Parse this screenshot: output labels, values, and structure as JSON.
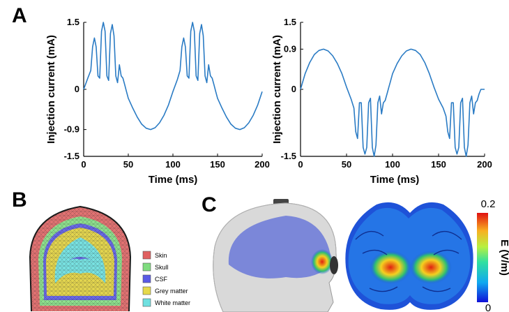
{
  "panels": {
    "a": "A",
    "b": "B",
    "c": "C"
  },
  "chart_data": [
    {
      "type": "line",
      "xlabel": "Time (ms)",
      "ylabel": "Injection current (mA)",
      "xlim": [
        0,
        200
      ],
      "ylim": [
        -1.5,
        1.5
      ],
      "xticks": [
        "0",
        "50",
        "100",
        "150",
        "200"
      ],
      "yticks": [
        "1.5",
        "0",
        "-0.9",
        "-1.5"
      ],
      "ytick_values": [
        1.5,
        0,
        -0.9,
        -1.5
      ],
      "series": [
        {
          "color": "#2a7bc4",
          "x": [
            0,
            5,
            8,
            10,
            12,
            14,
            16,
            18,
            20,
            22,
            24,
            26,
            28,
            30,
            32,
            34,
            36,
            38,
            40,
            42,
            44,
            46,
            48,
            50,
            55,
            60,
            65,
            70,
            75,
            80,
            85,
            90,
            95,
            100,
            105,
            108,
            110,
            112,
            114,
            116,
            118,
            120,
            122,
            124,
            126,
            128,
            130,
            132,
            134,
            136,
            138,
            140,
            142,
            144,
            146,
            148,
            150,
            155,
            160,
            165,
            170,
            175,
            180,
            185,
            190,
            195,
            200
          ],
          "y": [
            0.0,
            0.27,
            0.42,
            0.95,
            1.15,
            0.95,
            0.3,
            0.25,
            1.3,
            1.5,
            1.3,
            0.3,
            0.2,
            1.25,
            1.45,
            1.2,
            0.3,
            0.15,
            0.55,
            0.3,
            0.25,
            0.1,
            -0.05,
            -0.2,
            -0.42,
            -0.62,
            -0.78,
            -0.87,
            -0.9,
            -0.86,
            -0.75,
            -0.58,
            -0.35,
            -0.05,
            0.22,
            0.42,
            0.95,
            1.15,
            0.95,
            0.3,
            0.25,
            1.3,
            1.5,
            1.3,
            0.3,
            0.2,
            1.25,
            1.45,
            1.2,
            0.3,
            0.15,
            0.55,
            0.3,
            0.25,
            0.1,
            -0.05,
            -0.2,
            -0.42,
            -0.62,
            -0.78,
            -0.87,
            -0.9,
            -0.86,
            -0.75,
            -0.58,
            -0.35,
            -0.05
          ]
        }
      ]
    },
    {
      "type": "line",
      "xlabel": "Time (ms)",
      "ylabel": "Injection current (mA)",
      "xlim": [
        0,
        200
      ],
      "ylim": [
        -1.5,
        1.5
      ],
      "xticks": [
        "0",
        "50",
        "100",
        "150",
        "200"
      ],
      "yticks": [
        "1.5",
        "0.9",
        "0",
        "-1.5"
      ],
      "ytick_values": [
        1.5,
        0.9,
        0,
        -1.5
      ],
      "series": [
        {
          "color": "#2a7bc4",
          "x": [
            0,
            5,
            10,
            15,
            20,
            25,
            30,
            35,
            40,
            45,
            50,
            55,
            58,
            60,
            62,
            64,
            66,
            68,
            70,
            72,
            74,
            76,
            78,
            80,
            82,
            84,
            86,
            88,
            90,
            92,
            94,
            96,
            98,
            100,
            105,
            110,
            115,
            120,
            125,
            130,
            135,
            140,
            145,
            150,
            155,
            158,
            160,
            162,
            164,
            166,
            168,
            170,
            172,
            174,
            176,
            178,
            180,
            182,
            184,
            186,
            188,
            190,
            192,
            194,
            196,
            198,
            200
          ],
          "y": [
            0.0,
            0.35,
            0.6,
            0.78,
            0.87,
            0.9,
            0.86,
            0.75,
            0.58,
            0.35,
            0.05,
            -0.22,
            -0.42,
            -0.95,
            -1.1,
            -0.3,
            -0.3,
            -1.3,
            -1.45,
            -1.3,
            -0.3,
            -0.2,
            -1.3,
            -1.5,
            -1.25,
            -0.3,
            -0.15,
            -0.55,
            -0.3,
            -0.25,
            -0.1,
            0.05,
            0.2,
            0.35,
            0.58,
            0.75,
            0.86,
            0.9,
            0.87,
            0.78,
            0.6,
            0.35,
            0.05,
            -0.22,
            -0.42,
            -0.6,
            -0.95,
            -1.1,
            -0.3,
            -0.3,
            -1.3,
            -1.45,
            -1.3,
            -0.3,
            -0.2,
            -1.3,
            -1.5,
            -1.25,
            -0.3,
            -0.15,
            -0.55,
            -0.3,
            -0.25,
            -0.1,
            0.0,
            0.0,
            0.0
          ]
        }
      ]
    }
  ],
  "legend_b": [
    {
      "label": "Skin",
      "color": "#e06060"
    },
    {
      "label": "Skull",
      "color": "#7fdc7f"
    },
    {
      "label": "CSF",
      "color": "#5a5ae6"
    },
    {
      "label": "Grey matter",
      "color": "#e6d94a"
    },
    {
      "label": "White matter",
      "color": "#6fe0e0"
    }
  ],
  "colorbar": {
    "label": "E (V/m)",
    "max": "0.2",
    "min": "0"
  }
}
